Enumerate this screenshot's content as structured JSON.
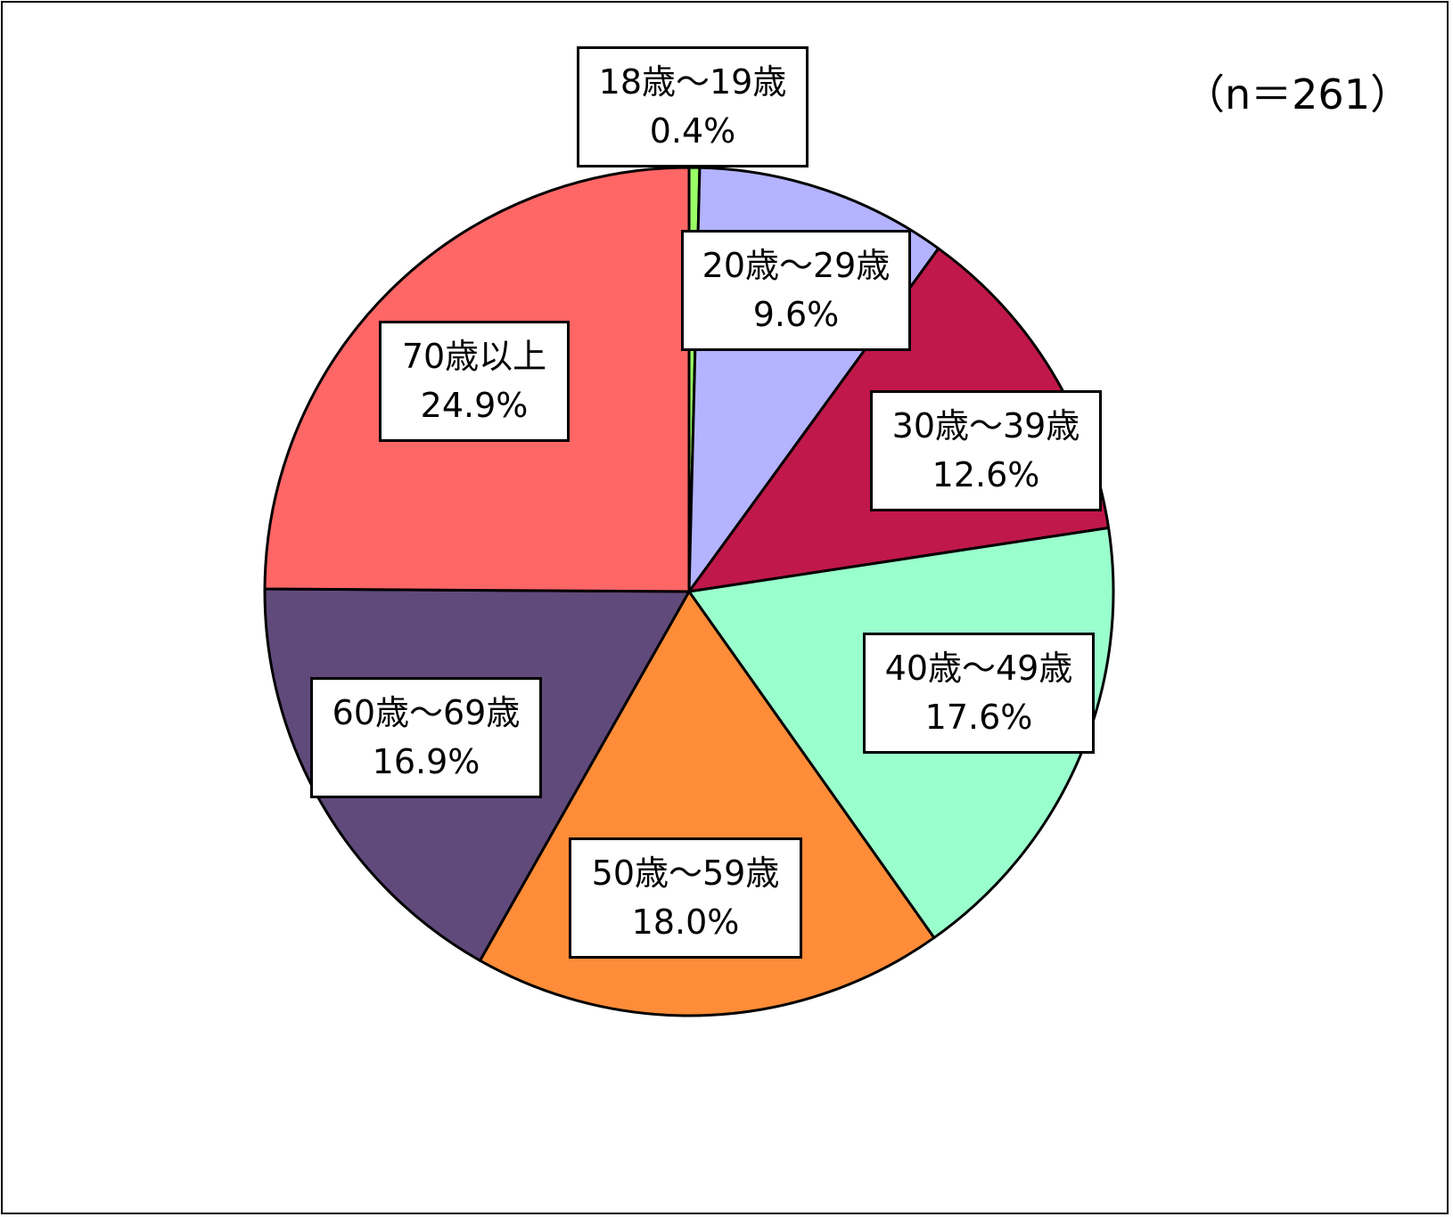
{
  "chart_data": {
    "type": "pie",
    "title": "",
    "annotation": "（n＝261）",
    "start_angle": "top",
    "direction": "clockwise",
    "legend": "none",
    "slices": [
      {
        "label": "18歳～19歳",
        "value": 0.4,
        "display": "0.4%",
        "color": "#99ff66"
      },
      {
        "label": "20歳～29歳",
        "value": 9.6,
        "display": "9.6%",
        "color": "#b3b3ff"
      },
      {
        "label": "30歳～39歳",
        "value": 12.6,
        "display": "12.6%",
        "color": "#c0184a"
      },
      {
        "label": "40歳～49歳",
        "value": 17.6,
        "display": "17.6%",
        "color": "#99ffcc"
      },
      {
        "label": "50歳～59歳",
        "value": 18.0,
        "display": "18.0%",
        "color": "#ff8c38"
      },
      {
        "label": "60歳～69歳",
        "value": 16.9,
        "display": "16.9%",
        "color": "#604a7b"
      },
      {
        "label": "70歳以上",
        "value": 24.9,
        "display": "24.9%",
        "color": "#ff6666"
      }
    ]
  }
}
